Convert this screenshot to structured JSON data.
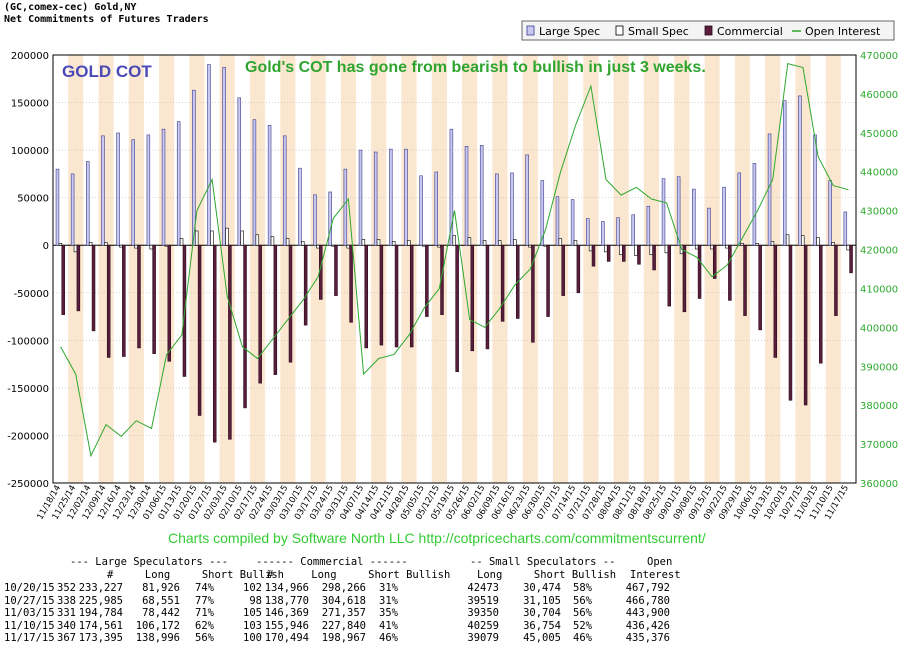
{
  "header": {
    "line1": "(GC,comex-cec) Gold,NY",
    "line2": "Net Commitments of Futures Traders"
  },
  "legend": {
    "large_spec": "Large Spec",
    "small_spec": "Small Spec",
    "commercial": "Commercial",
    "open_interest": "Open Interest"
  },
  "colors": {
    "large_spec": "#c8c8f0",
    "small_spec": "#ffffff",
    "commercial": "#5a1e3c",
    "open_interest": "#2ea82e",
    "band": "#fbe7cf",
    "title_blue": "#4a4ab8",
    "annotation_green": "#2fa52f"
  },
  "chart_data": {
    "type": "bar",
    "title": "GOLD COT",
    "annotation": "Gold's COT has gone from bearish to bullish in just 3 weeks.",
    "credit": "Charts compiled by Software North LLC  http://cotpricecharts.com/commitmentscurrent/",
    "ylim_left": [
      -250000,
      200000
    ],
    "ylim_right": [
      360000,
      470000
    ],
    "yticks_left": [
      "200000",
      "150000",
      "100000",
      "50000",
      "0",
      "-50000",
      "-100000",
      "-150000",
      "-200000",
      "-250000"
    ],
    "yticks_right": [
      "470000",
      "460000",
      "450000",
      "440000",
      "430000",
      "420000",
      "410000",
      "400000",
      "390000",
      "380000",
      "370000",
      "360000"
    ],
    "x_ticks": [
      "11/18/14",
      "11/25/14",
      "12/02/14",
      "12/09/14",
      "12/16/14",
      "12/23/14",
      "12/30/14",
      "01/06/15",
      "01/13/15",
      "01/20/15",
      "01/27/15",
      "02/03/15",
      "02/10/15",
      "02/17/15",
      "02/24/15",
      "03/03/15",
      "03/10/15",
      "03/17/15",
      "03/24/15",
      "03/31/15",
      "04/07/15",
      "04/14/15",
      "04/21/15",
      "04/28/15",
      "05/05/15",
      "05/12/15",
      "05/19/15",
      "05/26/15",
      "06/02/15",
      "06/09/15",
      "06/16/15",
      "06/23/15",
      "06/30/15",
      "07/07/15",
      "07/14/15",
      "07/21/15",
      "07/28/15",
      "08/04/15",
      "08/11/15",
      "08/18/15",
      "08/25/15",
      "09/01/15",
      "09/08/15",
      "09/15/15",
      "09/22/15",
      "09/29/15",
      "10/06/15",
      "10/13/15",
      "10/20/15",
      "10/27/15",
      "11/03/15",
      "11/10/15",
      "11/17/15"
    ],
    "series": [
      {
        "name": "Large Spec",
        "values": [
          80000,
          75000,
          88000,
          115000,
          118000,
          111000,
          116000,
          122000,
          130000,
          163000,
          190000,
          187000,
          155000,
          132000,
          126000,
          115000,
          81000,
          53000,
          56000,
          80000,
          100000,
          98000,
          101000,
          101000,
          73000,
          77000,
          122000,
          104000,
          105000,
          75000,
          76000,
          95000,
          68000,
          51000,
          48000,
          28000,
          25000,
          29000,
          32000,
          41000,
          70000,
          72000,
          59000,
          39000,
          61000,
          76000,
          86000,
          117000,
          152000,
          157000,
          116000,
          68000,
          35000
        ]
      },
      {
        "name": "Small Spec",
        "values": [
          2000,
          -7000,
          3000,
          3000,
          -2000,
          -3000,
          -4000,
          -1000,
          7000,
          15000,
          15000,
          18000,
          15000,
          11000,
          9000,
          7000,
          4000,
          -3000,
          -1000,
          -3000,
          6000,
          6000,
          4000,
          5000,
          -1000,
          -2000,
          10000,
          8000,
          5000,
          5000,
          6000,
          -2000,
          -1000,
          7000,
          5000,
          -6000,
          -7000,
          -10000,
          -11000,
          -10000,
          -8000,
          -9000,
          -4000,
          -4000,
          -3000,
          2000,
          2000,
          4000,
          11000,
          10000,
          8000,
          3000,
          -5000
        ]
      },
      {
        "name": "Commercial",
        "values": [
          -73000,
          -69000,
          -90000,
          -118000,
          -117000,
          -108000,
          -114000,
          -122000,
          -138000,
          -179000,
          -207000,
          -204000,
          -171000,
          -145000,
          -136000,
          -123000,
          -84000,
          -57000,
          -53000,
          -81000,
          -108000,
          -105000,
          -107000,
          -107000,
          -75000,
          -73000,
          -133000,
          -111000,
          -109000,
          -80000,
          -77000,
          -102000,
          -75000,
          -53000,
          -50000,
          -22000,
          -17000,
          -17000,
          -20000,
          -26000,
          -64000,
          -70000,
          -56000,
          -35000,
          -58000,
          -74000,
          -89000,
          -118000,
          -163000,
          -168000,
          -124000,
          -74000,
          -29000
        ]
      },
      {
        "name": "Open Interest",
        "axis": "right",
        "values": [
          395000,
          388000,
          367000,
          375000,
          372000,
          376000,
          374000,
          393000,
          398000,
          430000,
          438000,
          408000,
          395000,
          392000,
          397000,
          402000,
          407000,
          413000,
          428000,
          433000,
          388000,
          392000,
          393000,
          398000,
          405000,
          410000,
          430000,
          402000,
          400000,
          405000,
          411000,
          415000,
          425000,
          440000,
          452000,
          462000,
          438000,
          434000,
          436000,
          433000,
          432000,
          420000,
          418000,
          413000,
          416000,
          423000,
          430000,
          438000,
          467792,
          466780,
          443900,
          436426,
          435376
        ]
      }
    ]
  },
  "table": {
    "group_headers": {
      "large": "--- Large Speculators ---",
      "commercial": "------ Commercial ------",
      "small": "-- Small Speculators --",
      "open": "Open"
    },
    "col_headers": {
      "large": "#     Long     Short Bullish",
      "commercial": "#      Long     Short Bullish",
      "small": "Long     Short Bullish",
      "open": "Interest"
    },
    "rows": [
      {
        "date": "10/20/15",
        "l_n": "352",
        "l_long": "233,227",
        "l_short": "81,926",
        "l_bull": "74%",
        "c_n": "102",
        "c_long": "134,966",
        "c_short": "298,266",
        "c_bull": "31%",
        "s_long": "42473",
        "s_short": "30,474",
        "s_bull": "58%",
        "oi": "467,792"
      },
      {
        "date": "10/27/15",
        "l_n": "338",
        "l_long": "225,985",
        "l_short": "68,551",
        "l_bull": "77%",
        "c_n": "98",
        "c_long": "138,770",
        "c_short": "304,618",
        "c_bull": "31%",
        "s_long": "39519",
        "s_short": "31,105",
        "s_bull": "56%",
        "oi": "466,780"
      },
      {
        "date": "11/03/15",
        "l_n": "331",
        "l_long": "194,784",
        "l_short": "78,442",
        "l_bull": "71%",
        "c_n": "105",
        "c_long": "146,369",
        "c_short": "271,357",
        "c_bull": "35%",
        "s_long": "39350",
        "s_short": "30,704",
        "s_bull": "56%",
        "oi": "443,900"
      },
      {
        "date": "11/10/15",
        "l_n": "340",
        "l_long": "174,561",
        "l_short": "106,172",
        "l_bull": "62%",
        "c_n": "103",
        "c_long": "155,946",
        "c_short": "227,840",
        "c_bull": "41%",
        "s_long": "40259",
        "s_short": "36,754",
        "s_bull": "52%",
        "oi": "436,426"
      },
      {
        "date": "11/17/15",
        "l_n": "367",
        "l_long": "173,395",
        "l_short": "138,996",
        "l_bull": "56%",
        "c_n": "100",
        "c_long": "170,494",
        "c_short": "198,967",
        "c_bull": "46%",
        "s_long": "39079",
        "s_short": "45,005",
        "s_bull": "46%",
        "oi": "435,376"
      }
    ]
  }
}
